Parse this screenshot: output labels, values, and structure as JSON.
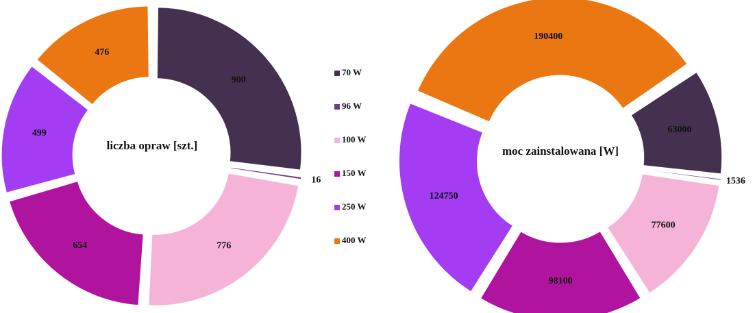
{
  "chart_data": [
    {
      "type": "donut",
      "title": "liczba opraw [szt.]",
      "categories": [
        "70 W",
        "96 W",
        "100 W",
        "150 W",
        "250 W",
        "400 W"
      ],
      "colors": [
        "#43314f",
        "#6b3b8c",
        "#f5b3d8",
        "#b0149f",
        "#a33cf2",
        "#ea7712"
      ],
      "values": [
        900,
        16,
        776,
        654,
        499,
        476
      ]
    },
    {
      "type": "donut",
      "title": "moc zainstalowana [W]",
      "values": [
        63000,
        1536,
        77600,
        98100,
        124750,
        190400
      ]
    }
  ]
}
